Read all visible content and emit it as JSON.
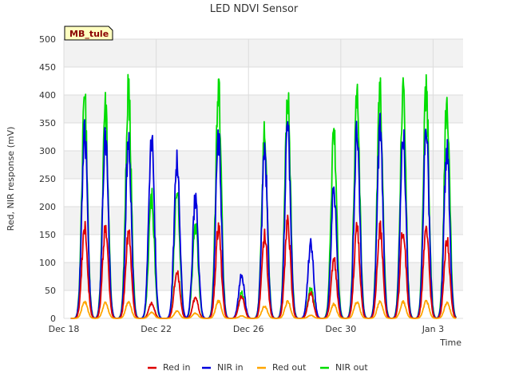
{
  "chart_data": {
    "type": "line",
    "title": "LED NDVI Sensor",
    "xlabel": "Time",
    "ylabel": "Red, NIR response (mV)",
    "badge": "MB_tule",
    "ylim": [
      0,
      500
    ],
    "yticks": [
      0,
      50,
      100,
      150,
      200,
      250,
      300,
      350,
      400,
      450,
      500
    ],
    "xlim": [
      0,
      17.3
    ],
    "xticks": [
      {
        "value": 0,
        "label": "Dec 18"
      },
      {
        "value": 4,
        "label": "Dec 22"
      },
      {
        "value": 8,
        "label": "Dec 26"
      },
      {
        "value": 12,
        "label": "Dec 30"
      },
      {
        "value": 16,
        "label": "Jan 3"
      }
    ],
    "grid": true,
    "legend_position": "bottom",
    "days": [
      0.9,
      1.8,
      2.8,
      3.8,
      4.9,
      5.7,
      6.7,
      7.7,
      8.7,
      9.7,
      10.7,
      11.7,
      12.7,
      13.7,
      14.7,
      15.7,
      16.6
    ],
    "series": [
      {
        "name": "Red in",
        "color": "#dd0000",
        "peaks": [
          178,
          177,
          170,
          30,
          95,
          40,
          178,
          45,
          162,
          188,
          50,
          115,
          178,
          180,
          175,
          183,
          158
        ]
      },
      {
        "name": "NIR in",
        "color": "#0000dd",
        "peaks": [
          366,
          360,
          345,
          348,
          310,
          238,
          355,
          88,
          325,
          373,
          150,
          252,
          360,
          370,
          358,
          365,
          335
        ]
      },
      {
        "name": "Red out",
        "color": "#ffa500",
        "peaks": [
          33,
          30,
          32,
          12,
          14,
          10,
          34,
          5,
          24,
          33,
          6,
          28,
          33,
          33,
          32,
          34,
          31
        ]
      },
      {
        "name": "NIR out",
        "color": "#00dd00",
        "peaks": [
          427,
          411,
          448,
          237,
          248,
          183,
          449,
          50,
          362,
          443,
          60,
          365,
          435,
          443,
          440,
          447,
          435
        ]
      }
    ]
  }
}
